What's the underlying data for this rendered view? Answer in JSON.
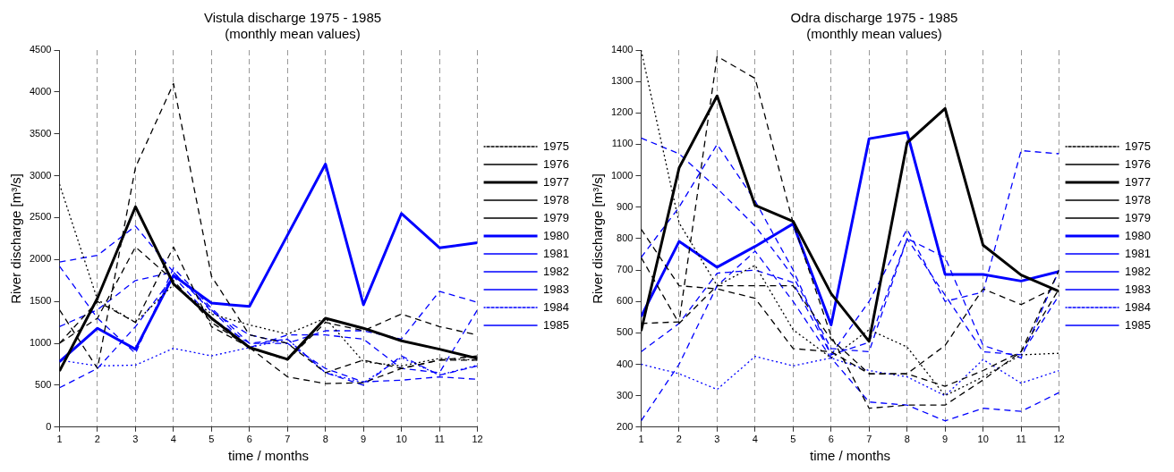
{
  "chart_data": [
    {
      "type": "line",
      "title": "Vistula discharge 1975 - 1985",
      "subtitle": "(monthly mean values)",
      "xlabel": "time / months",
      "ylabel": "River discharge [m³/s]",
      "x": [
        1,
        2,
        3,
        4,
        5,
        6,
        7,
        8,
        9,
        10,
        11,
        12
      ],
      "xlim": [
        1,
        12
      ],
      "xticks": [
        1,
        2,
        3,
        4,
        5,
        6,
        7,
        8,
        9,
        10,
        11,
        12
      ],
      "ylim": [
        0,
        4500
      ],
      "yticks": [
        0,
        500,
        1000,
        1500,
        2000,
        2500,
        3000,
        3500,
        4000,
        4500
      ],
      "grid": "x",
      "legend": "right",
      "marker": "none",
      "series": [
        {
          "name": "1975",
          "color": "#000000",
          "line_style": "dotted",
          "values": [
            2900,
            1520,
            1250,
            1700,
            1350,
            1220,
            1110,
            1300,
            780,
            730,
            820,
            800
          ]
        },
        {
          "name": "1976",
          "color": "#000000",
          "line_style": "dashed",
          "values": [
            1000,
            1300,
            2150,
            1750,
            1250,
            950,
            600,
            520,
            530,
            700,
            800,
            800
          ]
        },
        {
          "name": "1977",
          "color": "#000000",
          "line_style": "solid",
          "values": [
            670,
            1540,
            2630,
            1710,
            1300,
            950,
            810,
            1300,
            1180,
            1030,
            930,
            820
          ]
        },
        {
          "name": "1978",
          "color": "#000000",
          "line_style": "dashed",
          "values": [
            1400,
            700,
            3100,
            4100,
            1800,
            1100,
            1000,
            650,
            800,
            700,
            800,
            850
          ]
        },
        {
          "name": "1979",
          "color": "#000000",
          "line_style": "dashed",
          "values": [
            1000,
            1500,
            1250,
            2150,
            1200,
            950,
            800,
            1250,
            1150,
            1350,
            1200,
            1100
          ]
        },
        {
          "name": "1980",
          "color": "#0000ff",
          "line_style": "solid",
          "values": [
            780,
            1180,
            930,
            1810,
            1480,
            1440,
            2290,
            3140,
            1460,
            2550,
            2140,
            2200
          ]
        },
        {
          "name": "1981",
          "color": "#0000ff",
          "line_style": "dashed",
          "values": [
            1970,
            2050,
            2400,
            1850,
            1380,
            1100,
            1000,
            1150,
            1150,
            1050,
            1620,
            1490
          ]
        },
        {
          "name": "1982",
          "color": "#0000ff",
          "line_style": "dashed",
          "values": [
            1920,
            1300,
            880,
            1900,
            1420,
            1000,
            1050,
            650,
            500,
            850,
            620,
            730
          ]
        },
        {
          "name": "1983",
          "color": "#0000ff",
          "line_style": "dashed",
          "values": [
            1200,
            1400,
            1750,
            1850,
            1400,
            950,
            1100,
            1100,
            1050,
            700,
            650,
            1400
          ]
        },
        {
          "name": "1984",
          "color": "#0000ff",
          "line_style": "dotted",
          "values": [
            800,
            730,
            740,
            940,
            850,
            950,
            1050,
            650,
            530,
            830,
            620,
            740
          ]
        },
        {
          "name": "1985",
          "color": "#0000ff",
          "line_style": "dashed",
          "values": [
            470,
            700,
            1200,
            1800,
            1300,
            1000,
            1000,
            700,
            540,
            560,
            600,
            570
          ]
        }
      ]
    },
    {
      "type": "line",
      "title": "Odra discharge 1975 - 1985",
      "subtitle": "(monthly mean values)",
      "xlabel": "time / months",
      "ylabel": "River discharge [m³/s]",
      "x": [
        1,
        2,
        3,
        4,
        5,
        6,
        7,
        8,
        9,
        10,
        11,
        12
      ],
      "xlim": [
        1,
        12
      ],
      "xticks": [
        1,
        2,
        3,
        4,
        5,
        6,
        7,
        8,
        9,
        10,
        11,
        12
      ],
      "ylim": [
        200,
        1400
      ],
      "yticks": [
        200,
        300,
        400,
        500,
        600,
        700,
        800,
        900,
        1000,
        1100,
        1200,
        1300,
        1400
      ],
      "grid": "x",
      "legend": "right",
      "marker": "none",
      "series": [
        {
          "name": "1975",
          "color": "#000000",
          "line_style": "dotted",
          "values": [
            1400,
            850,
            650,
            715,
            510,
            420,
            510,
            455,
            300,
            360,
            430,
            435
          ]
        },
        {
          "name": "1976",
          "color": "#000000",
          "line_style": "dashed",
          "values": [
            830,
            650,
            640,
            610,
            450,
            440,
            370,
            370,
            330,
            380,
            440,
            640
          ]
        },
        {
          "name": "1977",
          "color": "#000000",
          "line_style": "solid",
          "values": [
            506,
            1025,
            1254,
            906,
            855,
            625,
            473,
            1105,
            1214,
            779,
            684,
            632
          ]
        },
        {
          "name": "1978",
          "color": "#000000",
          "line_style": "dashed",
          "values": [
            740,
            530,
            650,
            650,
            650,
            480,
            370,
            370,
            460,
            640,
            590,
            650
          ]
        },
        {
          "name": "1979",
          "color": "#000000",
          "line_style": "dashed",
          "values": [
            530,
            535,
            1380,
            1310,
            850,
            490,
            260,
            270,
            270,
            350,
            440,
            700
          ]
        },
        {
          "name": "1980",
          "color": "#0000ff",
          "line_style": "solid",
          "values": [
            552,
            791,
            709,
            775,
            847,
            525,
            1118,
            1138,
            686,
            686,
            665,
            695
          ]
        },
        {
          "name": "1981",
          "color": "#0000ff",
          "line_style": "dashed",
          "values": [
            740,
            900,
            1100,
            920,
            700,
            430,
            600,
            830,
            600,
            630,
            1080,
            1070
          ]
        },
        {
          "name": "1982",
          "color": "#0000ff",
          "line_style": "dashed",
          "values": [
            1120,
            1070,
            960,
            840,
            680,
            450,
            440,
            800,
            740,
            460,
            420,
            700
          ]
        },
        {
          "name": "1983",
          "color": "#0000ff",
          "line_style": "dashed",
          "values": [
            440,
            530,
            690,
            700,
            660,
            430,
            470,
            800,
            620,
            440,
            430,
            620
          ]
        },
        {
          "name": "1984",
          "color": "#0000ff",
          "line_style": "dotted",
          "values": [
            400,
            370,
            320,
            425,
            395,
            420,
            380,
            360,
            300,
            415,
            340,
            380
          ]
        },
        {
          "name": "1985",
          "color": "#0000ff",
          "line_style": "dashed",
          "values": [
            220,
            400,
            650,
            760,
            600,
            420,
            280,
            270,
            220,
            260,
            250,
            310
          ]
        }
      ]
    }
  ]
}
